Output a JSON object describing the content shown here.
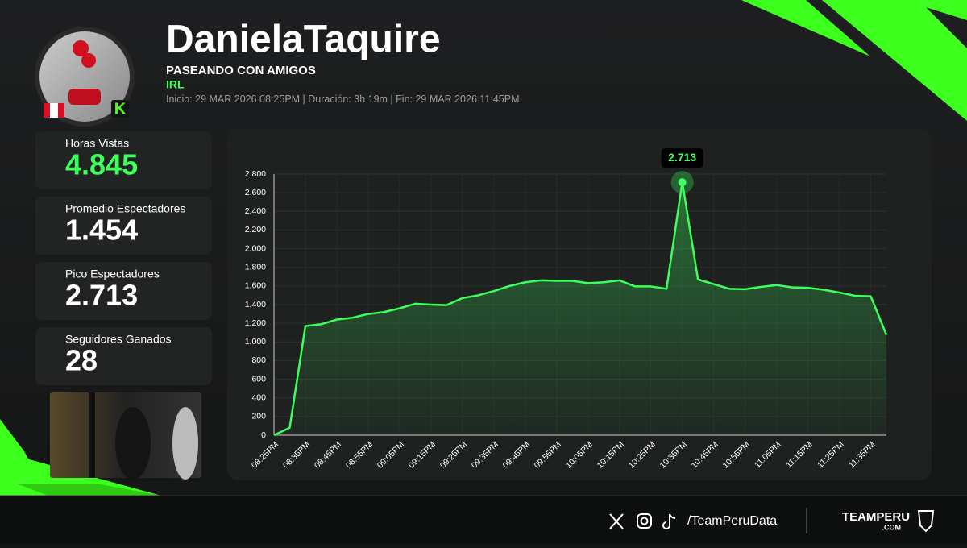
{
  "header": {
    "name": "DanielaTaquire",
    "title": "PASEANDO CON AMIGOS",
    "category": "IRL",
    "start": "Inicio: 29 MAR 2026 08:25PM",
    "duration": "Duración: 3h 19m",
    "end": "Fin: 29 MAR 2026 11:45PM"
  },
  "stats": [
    {
      "label": "Horas Vistas",
      "value": "4.845"
    },
    {
      "label": "Promedio Espectadores",
      "value": "1.454"
    },
    {
      "label": "Pico Espectadores",
      "value": "2.713"
    },
    {
      "label": "Seguidores Ganados",
      "value": "28"
    }
  ],
  "footer": {
    "handle": "/TeamPeruData",
    "brand": "TEAMPERU",
    "brand_sub": ".COM"
  },
  "chart_data": {
    "type": "area",
    "color": "#3dff5c",
    "categories": [
      "08:25PM",
      null,
      "08:35PM",
      null,
      "08:45PM",
      null,
      "08:55PM",
      null,
      "09:05PM",
      null,
      "09:15PM",
      null,
      "09:25PM",
      null,
      "09:35PM",
      null,
      "09:45PM",
      null,
      "09:55PM",
      null,
      "10:05PM",
      null,
      "10:15PM",
      null,
      "10:25PM",
      null,
      "10:35PM",
      null,
      "10:45PM",
      null,
      "10:55PM",
      null,
      "11:05PM",
      null,
      "11:15PM",
      null,
      "11:25PM",
      null,
      "11:35PM",
      null
    ],
    "values": [
      0,
      80,
      1170,
      1190,
      1240,
      1260,
      1300,
      1320,
      1360,
      1410,
      1400,
      1395,
      1470,
      1500,
      1545,
      1600,
      1640,
      1660,
      1655,
      1655,
      1630,
      1640,
      1660,
      1595,
      1595,
      1570,
      2713,
      1670,
      1620,
      1570,
      1565,
      1590,
      1610,
      1585,
      1580,
      1560,
      1530,
      1495,
      1490,
      1075
    ],
    "value_labels": [
      null,
      null,
      null,
      null,
      null,
      null,
      null,
      null,
      null,
      null,
      null,
      null,
      null,
      null,
      null,
      null,
      null,
      null,
      null,
      null,
      null,
      null,
      null,
      null,
      null,
      null,
      "2.713",
      null,
      null,
      null,
      null,
      null,
      null,
      null,
      null,
      null,
      null,
      null,
      null,
      null
    ],
    "ylim": [
      0,
      2800
    ],
    "yticks": [
      0,
      200,
      400,
      600,
      800,
      {
        "value": 1000,
        "label": "1.000"
      },
      {
        "value": 1200,
        "label": "1.200"
      },
      {
        "value": 1400,
        "label": "1.400"
      },
      {
        "value": 1600,
        "label": "1.600"
      },
      {
        "value": 1800,
        "label": "1.800"
      },
      {
        "value": 2000,
        "label": "2.000"
      },
      {
        "value": 2200,
        "label": "2.200"
      },
      {
        "value": 2400,
        "label": "2.400"
      },
      {
        "value": 2600,
        "label": "2.600"
      },
      {
        "value": 2800,
        "label": "2.800"
      }
    ],
    "grid": true
  }
}
